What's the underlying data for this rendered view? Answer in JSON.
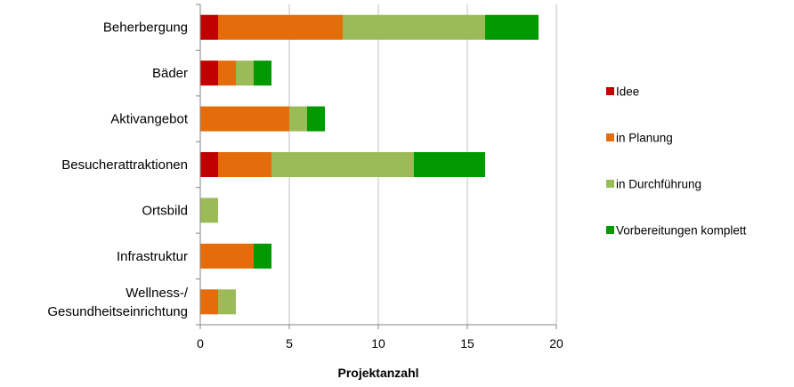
{
  "chart_data": {
    "type": "bar",
    "orientation": "horizontal",
    "stacked": true,
    "categories": [
      "Beherbergung",
      "Bäder",
      "Aktivangebot",
      "Besucherattraktionen",
      "Ortsbild",
      "Infrastruktur",
      "Wellness-/ Gesundheitseinrichtung"
    ],
    "category_lines": [
      [
        "Beherbergung"
      ],
      [
        "Bäder"
      ],
      [
        "Aktivangebot"
      ],
      [
        "Besucherattraktionen"
      ],
      [
        "Ortsbild"
      ],
      [
        "Infrastruktur"
      ],
      [
        "Wellness-/",
        "Gesundheitseinrichtung"
      ]
    ],
    "series": [
      {
        "name": "Idee",
        "color": "#c00000",
        "values": [
          1,
          1,
          0,
          1,
          0,
          0,
          0
        ]
      },
      {
        "name": "in Planung",
        "color": "#e46c0a",
        "values": [
          7,
          1,
          5,
          3,
          0,
          3,
          1
        ]
      },
      {
        "name": "in Durchführung",
        "color": "#9bbb59",
        "values": [
          8,
          1,
          1,
          8,
          1,
          0,
          1
        ]
      },
      {
        "name": "Vorbereitungen komplett",
        "color": "#009900",
        "values": [
          3,
          1,
          1,
          4,
          0,
          1,
          0
        ]
      }
    ],
    "xlabel": "Projektanzahl",
    "xlim": [
      0,
      20
    ],
    "xticks": [
      0,
      5,
      10,
      15,
      20
    ],
    "grid": "vertical",
    "legend_position": "right"
  }
}
